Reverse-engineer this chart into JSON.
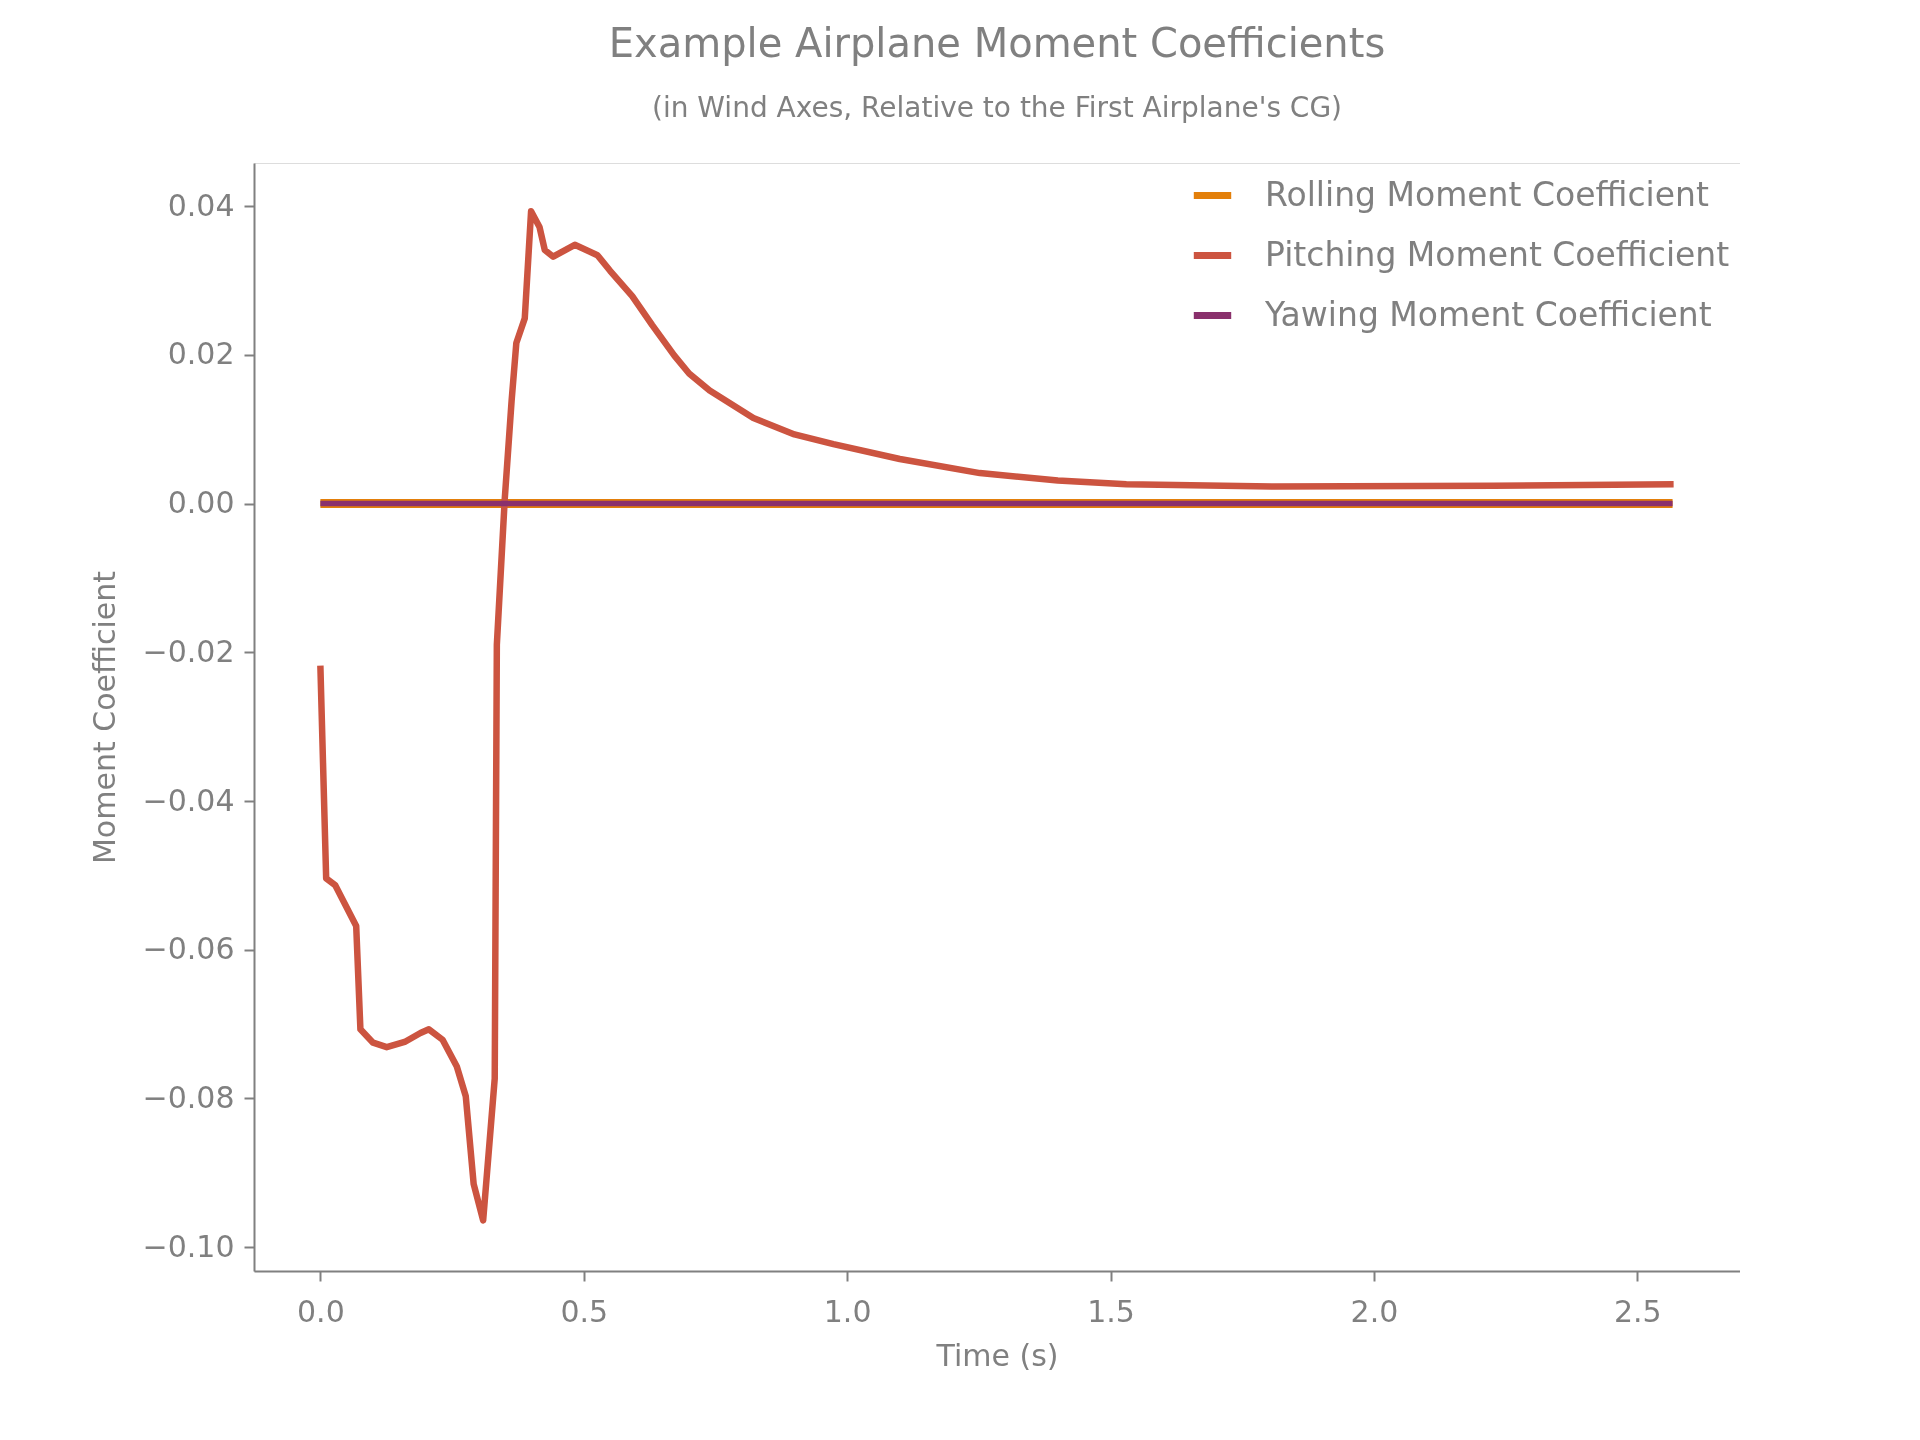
{
  "chart_data": {
    "type": "line",
    "title": "Example Airplane Moment Coefficients",
    "subtitle": "(in Wind Axes, Relative to the First Airplane's CG)",
    "xlabel": "Time (s)",
    "ylabel": "Moment Coefficient",
    "xlim": [
      -0.126,
      2.695
    ],
    "ylim": [
      -0.1032,
      0.0458
    ],
    "xticks": [
      {
        "value": 0,
        "label": "0.0"
      },
      {
        "value": 0.5,
        "label": "0.5"
      },
      {
        "value": 1,
        "label": "1.0"
      },
      {
        "value": 1.5,
        "label": "1.5"
      },
      {
        "value": 2,
        "label": "2.0"
      },
      {
        "value": 2.5,
        "label": "2.5"
      }
    ],
    "yticks": [
      {
        "value": -0.1,
        "label": "−0.10"
      },
      {
        "value": -0.08,
        "label": "−0.08"
      },
      {
        "value": -0.06,
        "label": "−0.06"
      },
      {
        "value": -0.04,
        "label": "−0.04"
      },
      {
        "value": -0.02,
        "label": "−0.02"
      },
      {
        "value": 0,
        "label": "0.00"
      },
      {
        "value": 0.02,
        "label": "0.02"
      },
      {
        "value": 0.04,
        "label": "0.04"
      }
    ],
    "grid": false,
    "legend": "top right",
    "marker": "none",
    "line_style": "solid",
    "series": [
      {
        "name": "Rolling Moment Coefficient",
        "color": "#e37f0a",
        "x": [
          0,
          2.567
        ],
        "values": [
          0,
          0
        ]
      },
      {
        "name": "Pitching Moment Coefficient",
        "color": "#cc5440",
        "x": [
          0,
          0.011,
          0.028,
          0.068,
          0.076,
          0.1,
          0.126,
          0.16,
          0.19,
          0.206,
          0.232,
          0.259,
          0.276,
          0.291,
          0.309,
          0.331,
          0.335,
          0.35,
          0.363,
          0.372,
          0.388,
          0.4,
          0.416,
          0.426,
          0.442,
          0.483,
          0.526,
          0.55,
          0.592,
          0.63,
          0.672,
          0.7,
          0.739,
          0.822,
          0.9,
          0.974,
          1.1,
          1.252,
          1.4,
          1.53,
          1.81,
          2.227,
          2.569
        ],
        "values": [
          -0.0218,
          -0.0504,
          -0.0513,
          -0.0568,
          -0.0707,
          -0.0725,
          -0.0731,
          -0.0724,
          -0.0712,
          -0.0707,
          -0.0721,
          -0.0757,
          -0.0797,
          -0.0915,
          -0.0964,
          -0.0773,
          -0.019,
          0.0006,
          0.0138,
          0.0216,
          0.0249,
          0.0393,
          0.0372,
          0.0341,
          0.0332,
          0.0348,
          0.0334,
          0.0313,
          0.0279,
          0.024,
          0.0199,
          0.0175,
          0.0152,
          0.0115,
          0.0093,
          0.008,
          0.006,
          0.0041,
          0.0031,
          0.0026,
          0.0023,
          0.0024,
          0.0026
        ]
      },
      {
        "name": "Yawing Moment Coefficient",
        "color": "#8a306c",
        "x": [
          0,
          2.567
        ],
        "values": [
          0,
          0
        ]
      }
    ]
  }
}
